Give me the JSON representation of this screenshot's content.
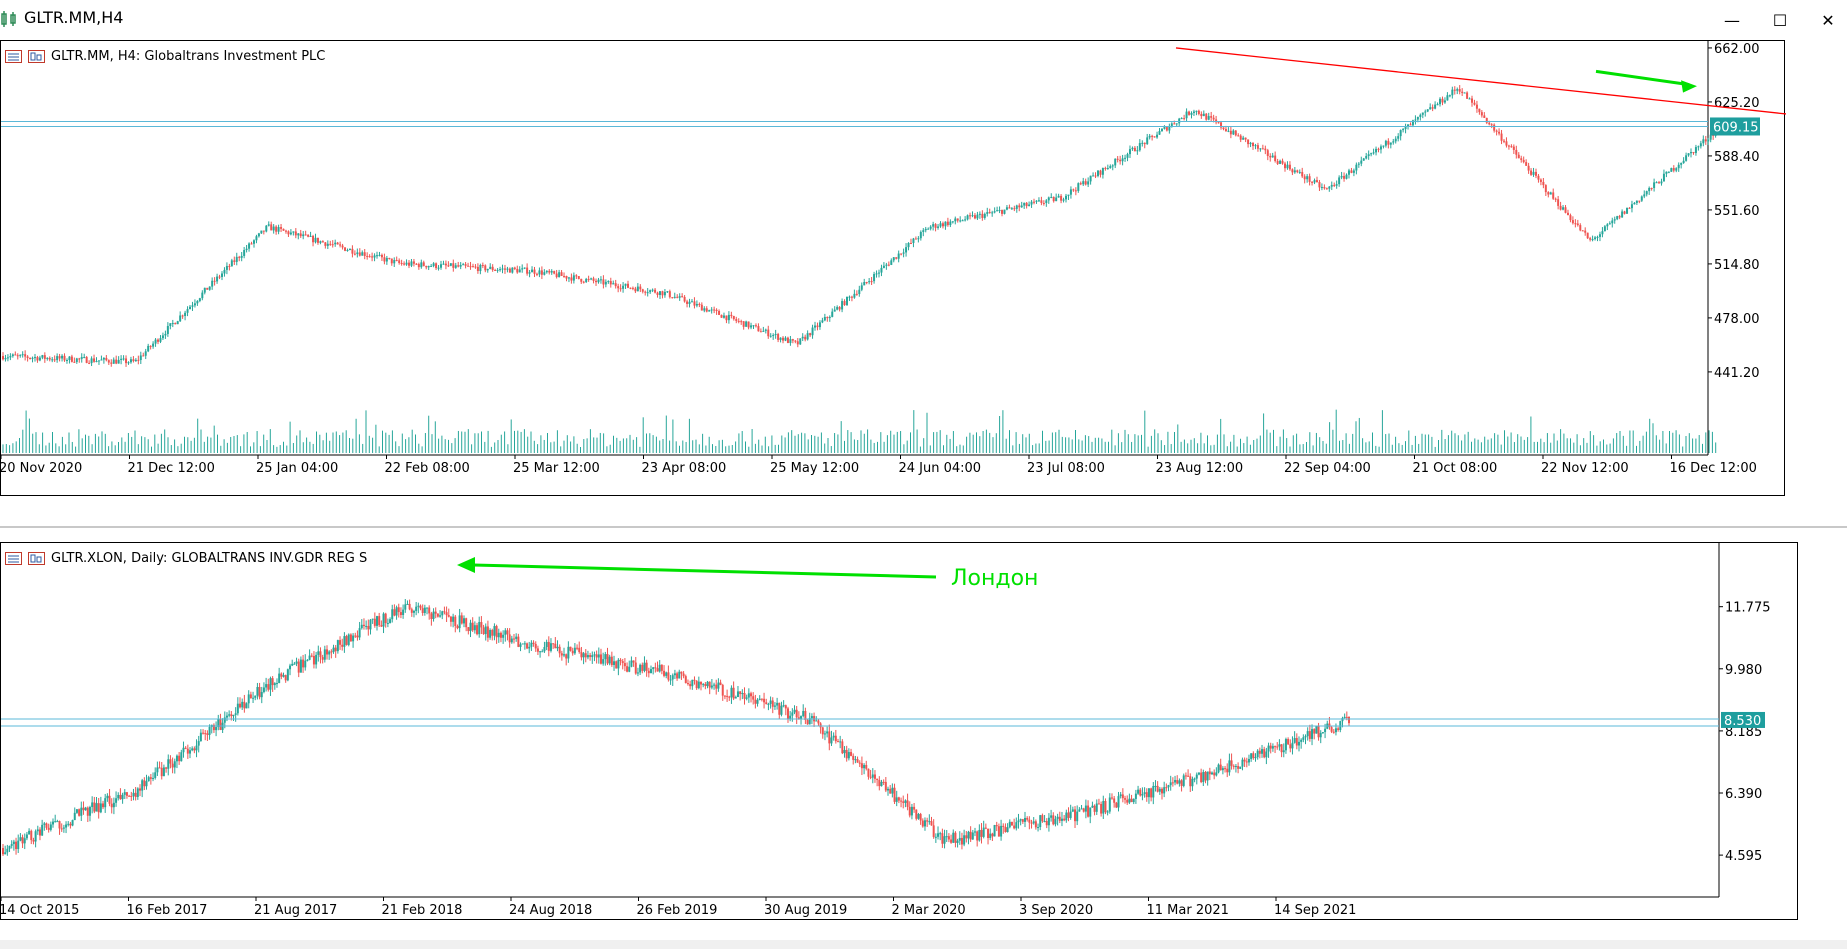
{
  "window": {
    "title": "GLTR.MM,H4",
    "minimize_label": "—",
    "maximize_label": "☐",
    "close_label": "✕"
  },
  "top_chart": {
    "title": "GLTR.MM, H4:  Globaltrans Investment PLC",
    "price_ticks": [
      "662.00",
      "625.20",
      "588.40",
      "551.60",
      "514.80",
      "478.00",
      "441.20"
    ],
    "price_tag": "609.15",
    "time_ticks": [
      "20 Nov 2020",
      "21 Dec 12:00",
      "25 Jan 04:00",
      "22 Feb 08:00",
      "25 Mar 12:00",
      "23 Apr 08:00",
      "25 May 12:00",
      "24 Jun 04:00",
      "23 Jul 08:00",
      "23 Aug 12:00",
      "22 Sep 04:00",
      "21 Oct 08:00",
      "22 Nov 12:00",
      "16 Dec 12:00"
    ],
    "colors": {
      "up": "#26a69a",
      "down": "#ef5350",
      "trendline": "#ff0000",
      "arrow": "#00e000",
      "level": "#5bb8d8"
    }
  },
  "bottom_chart": {
    "title": "GLTR.XLON, Daily:  GLOBALTRANS INV.GDR REG S",
    "annotation": "Лондон",
    "price_ticks": [
      "11.775",
      "9.980",
      "8.185",
      "6.390",
      "4.595"
    ],
    "price_tag": "8.530",
    "time_ticks": [
      "14 Oct 2015",
      "16 Feb 2017",
      "21 Aug 2017",
      "21 Feb 2018",
      "24 Aug 2018",
      "26 Feb 2019",
      "30 Aug 2019",
      "2 Mar 2020",
      "3 Sep 2020",
      "11 Mar 2021",
      "14 Sep 2021"
    ]
  },
  "chart_data": [
    {
      "type": "candlestick",
      "title": "GLTR.MM, H4:  Globaltrans Investment PLC",
      "x": [
        "20 Nov 2020",
        "21 Dec 12:00",
        "25 Jan 04:00",
        "22 Feb 08:00",
        "25 Mar 12:00",
        "23 Apr 08:00",
        "25 May 12:00",
        "24 Jun 04:00",
        "23 Jul 08:00",
        "23 Aug 12:00",
        "22 Sep 04:00",
        "21 Oct 08:00",
        "22 Nov 12:00",
        "16 Dec 12:00"
      ],
      "close": [
        452,
        448,
        540,
        515,
        510,
        495,
        460,
        540,
        560,
        620,
        565,
        635,
        530,
        610
      ],
      "ylim": [
        420,
        664
      ],
      "last_price": 609.15
    },
    {
      "type": "candlestick",
      "title": "GLTR.XLON, Daily:  GLOBALTRANS INV.GDR REG S",
      "x": [
        "14 Oct 2015",
        "16 Feb 2017",
        "21 Aug 2017",
        "21 Feb 2018",
        "24 Aug 2018",
        "26 Feb 2019",
        "30 Aug 2019",
        "2 Mar 2020",
        "3 Sep 2020",
        "11 Mar 2021",
        "14 Sep 2021"
      ],
      "close": [
        4.8,
        6.5,
        9.6,
        11.8,
        10.6,
        9.8,
        8.5,
        5.0,
        5.8,
        7.0,
        8.5
      ],
      "ylim": [
        3.5,
        13.5
      ],
      "last_price": 8.53
    }
  ]
}
